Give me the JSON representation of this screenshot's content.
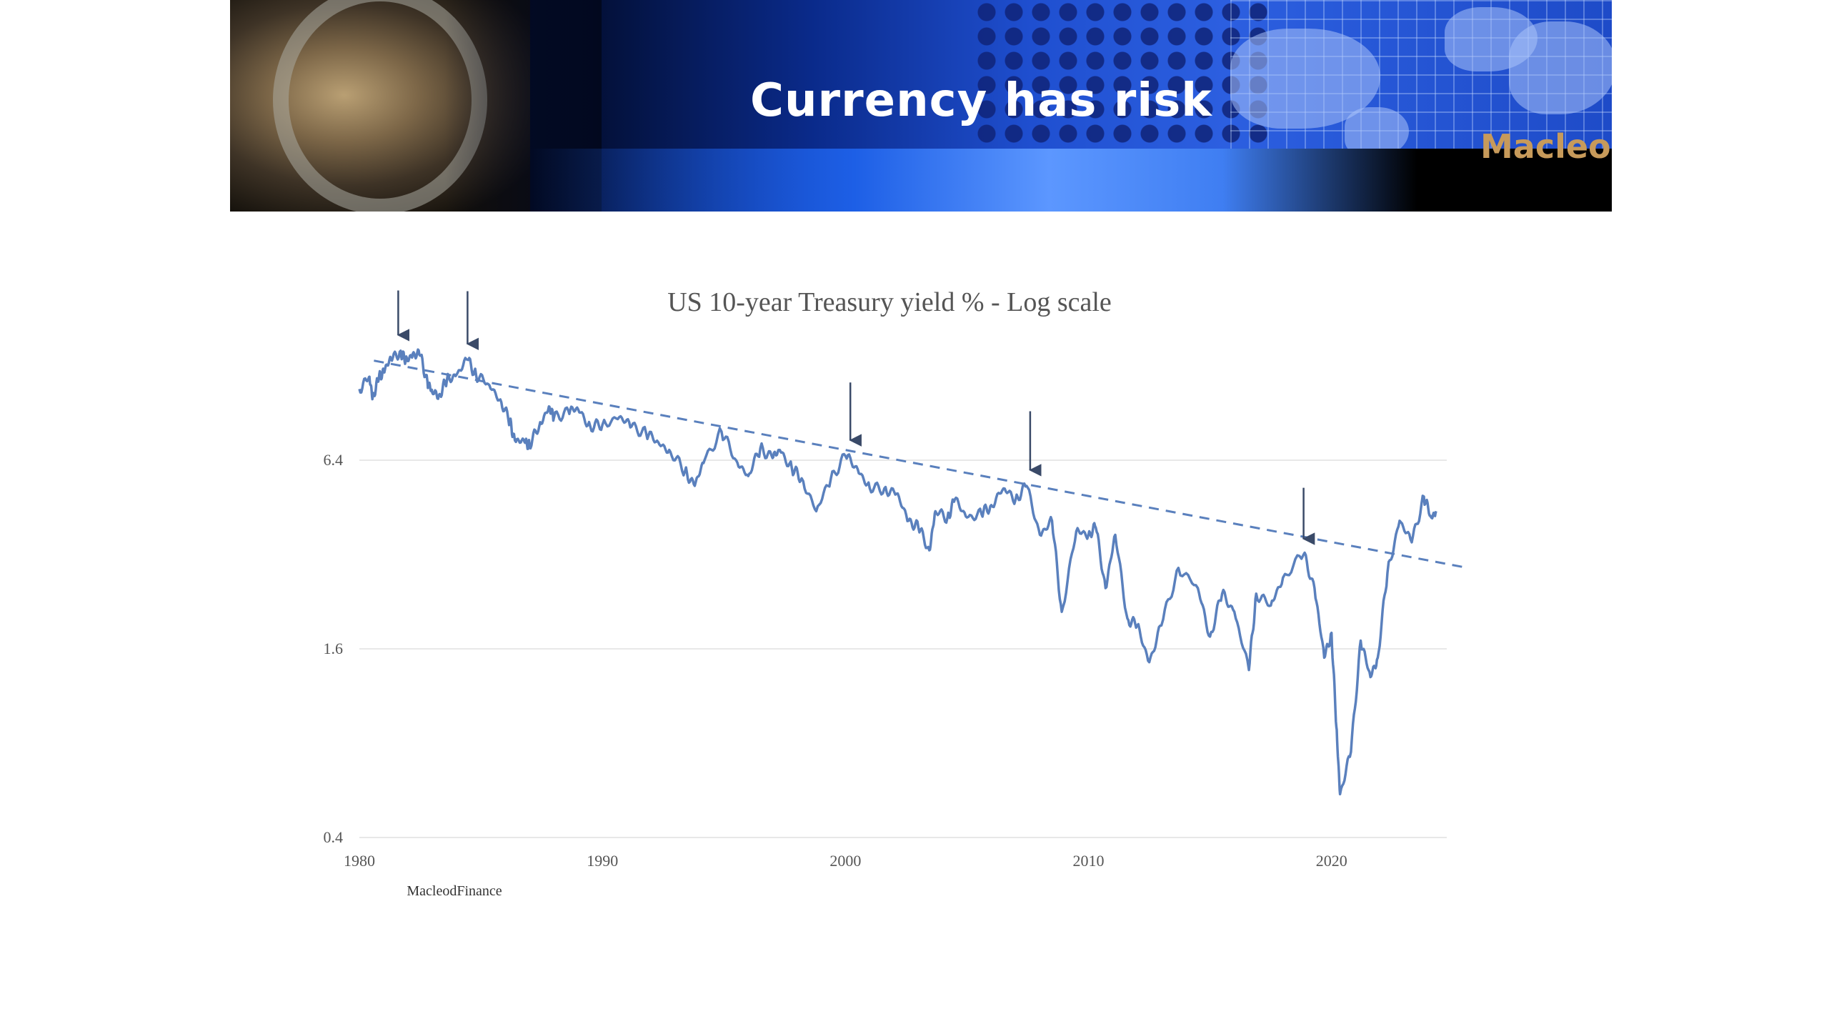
{
  "slide": {
    "title": "Currency has risk",
    "brand": "MacleodFinance"
  },
  "colors": {
    "series": "#5a80bd",
    "trendline": "#5a80bd",
    "arrow": "#3a4a68",
    "grid": "#e8e8e8",
    "text": "#555555"
  },
  "chart_data": {
    "type": "line",
    "title": "US 10-year Treasury yield % - Log scale",
    "xlabel": "",
    "ylabel": "",
    "y_scale": "log",
    "xlim": [
      1980,
      2024.3
    ],
    "ylim": [
      0.4,
      25.6
    ],
    "x_ticks": [
      "1980",
      "1990",
      "2000",
      "2010",
      "2020"
    ],
    "y_ticks": [
      "0.4",
      "1.6",
      "6.4"
    ],
    "grid": "horizontal",
    "legend": "none",
    "source_label": "MacleodFinance",
    "series": [
      {
        "values": [
          [
            1980.0,
            10.8
          ],
          [
            1980.4,
            11.8
          ],
          [
            1980.55,
            10.2
          ],
          [
            1980.8,
            11.6
          ],
          [
            1981.0,
            12.4
          ],
          [
            1981.3,
            13.4
          ],
          [
            1981.7,
            14.3
          ],
          [
            1981.9,
            13.2
          ],
          [
            1982.2,
            14.0
          ],
          [
            1982.5,
            13.8
          ],
          [
            1982.8,
            11.4
          ],
          [
            1983.0,
            10.5
          ],
          [
            1983.3,
            10.4
          ],
          [
            1983.6,
            11.5
          ],
          [
            1984.0,
            12.0
          ],
          [
            1984.45,
            13.4
          ],
          [
            1984.8,
            12.0
          ],
          [
            1985.3,
            11.2
          ],
          [
            1985.8,
            10.0
          ],
          [
            1986.2,
            8.4
          ],
          [
            1986.4,
            7.4
          ],
          [
            1986.8,
            7.3
          ],
          [
            1987.0,
            7.2
          ],
          [
            1987.4,
            8.2
          ],
          [
            1987.8,
            9.5
          ],
          [
            1988.0,
            8.7
          ],
          [
            1988.6,
            9.2
          ],
          [
            1989.0,
            9.3
          ],
          [
            1989.5,
            8.2
          ],
          [
            1990.0,
            8.3
          ],
          [
            1990.7,
            8.8
          ],
          [
            1991.2,
            8.2
          ],
          [
            1991.8,
            7.8
          ],
          [
            1992.3,
            7.3
          ],
          [
            1992.8,
            6.8
          ],
          [
            1993.4,
            5.9
          ],
          [
            1993.8,
            5.3
          ],
          [
            1994.2,
            6.4
          ],
          [
            1994.9,
            7.9
          ],
          [
            1995.5,
            6.4
          ],
          [
            1996.0,
            5.7
          ],
          [
            1996.5,
            7.0
          ],
          [
            1997.0,
            6.5
          ],
          [
            1997.3,
            6.9
          ],
          [
            1997.8,
            6.0
          ],
          [
            1998.2,
            5.6
          ],
          [
            1998.8,
            4.4
          ],
          [
            1999.4,
            5.6
          ],
          [
            2000.0,
            6.6
          ],
          [
            2000.5,
            6.0
          ],
          [
            2001.0,
            5.2
          ],
          [
            2001.6,
            5.2
          ],
          [
            2002.1,
            5.0
          ],
          [
            2002.6,
            4.1
          ],
          [
            2003.0,
            3.9
          ],
          [
            2003.45,
            3.3
          ],
          [
            2003.7,
            4.4
          ],
          [
            2004.2,
            4.2
          ],
          [
            2004.5,
            4.8
          ],
          [
            2005.0,
            4.2
          ],
          [
            2005.6,
            4.3
          ],
          [
            2006.0,
            4.6
          ],
          [
            2006.5,
            5.2
          ],
          [
            2007.0,
            4.8
          ],
          [
            2007.45,
            5.3
          ],
          [
            2008.0,
            3.7
          ],
          [
            2008.5,
            4.1
          ],
          [
            2008.9,
            2.1
          ],
          [
            2009.5,
            3.8
          ],
          [
            2010.0,
            3.7
          ],
          [
            2010.3,
            3.9
          ],
          [
            2010.7,
            2.5
          ],
          [
            2011.1,
            3.7
          ],
          [
            2011.6,
            2.0
          ],
          [
            2012.0,
            1.9
          ],
          [
            2012.5,
            1.45
          ],
          [
            2013.0,
            1.9
          ],
          [
            2013.7,
            2.9
          ],
          [
            2014.5,
            2.5
          ],
          [
            2015.0,
            1.75
          ],
          [
            2015.5,
            2.4
          ],
          [
            2016.0,
            2.1
          ],
          [
            2016.6,
            1.37
          ],
          [
            2016.9,
            2.4
          ],
          [
            2017.5,
            2.2
          ],
          [
            2018.0,
            2.7
          ],
          [
            2018.85,
            3.2
          ],
          [
            2019.3,
            2.5
          ],
          [
            2019.7,
            1.5
          ],
          [
            2020.0,
            1.8
          ],
          [
            2020.2,
            0.9
          ],
          [
            2020.35,
            0.55
          ],
          [
            2020.8,
            0.75
          ],
          [
            2021.2,
            1.7
          ],
          [
            2021.6,
            1.3
          ],
          [
            2021.9,
            1.5
          ],
          [
            2022.3,
            2.8
          ],
          [
            2022.8,
            4.1
          ],
          [
            2023.3,
            3.5
          ],
          [
            2023.8,
            4.9
          ],
          [
            2024.1,
            4.2
          ],
          [
            2024.3,
            4.4
          ]
        ]
      }
    ],
    "trendline": [
      [
        1980.6,
        13.3
      ],
      [
        2025.6,
        2.9
      ]
    ],
    "arrows": [
      {
        "x": 1981.6,
        "y": 14.3
      },
      {
        "x": 1984.45,
        "y": 13.4
      },
      {
        "x": 2000.2,
        "y": 6.6
      },
      {
        "x": 2007.6,
        "y": 5.3
      },
      {
        "x": 2018.85,
        "y": 3.2
      }
    ]
  }
}
